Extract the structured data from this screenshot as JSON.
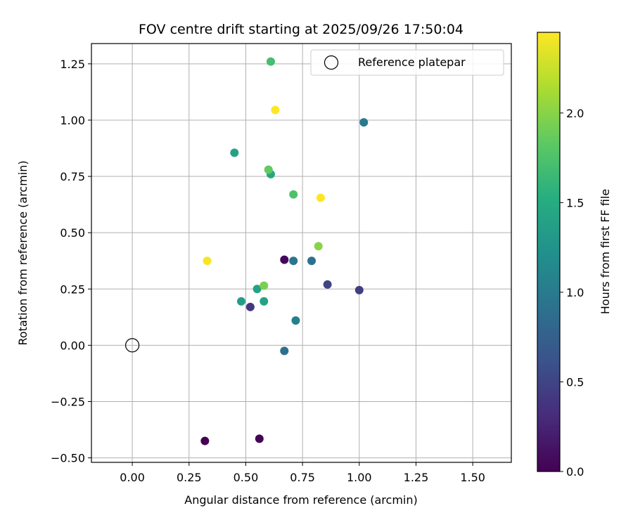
{
  "chart_data": {
    "type": "scatter",
    "title": "FOV centre drift starting at 2025/09/26 17:50:04",
    "xlabel": "Angular distance from reference (arcmin)",
    "ylabel": "Rotation from reference (arcmin)",
    "xlim": [
      -0.18,
      1.67
    ],
    "ylim": [
      -0.52,
      1.34
    ],
    "xticks": [
      "0.00",
      "0.25",
      "0.50",
      "0.75",
      "1.00",
      "1.25",
      "1.50"
    ],
    "xtick_values": [
      0,
      0.25,
      0.5,
      0.75,
      1.0,
      1.25,
      1.5
    ],
    "yticks": [
      "−0.50",
      "−0.25",
      "0.00",
      "0.25",
      "0.50",
      "0.75",
      "1.00",
      "1.25"
    ],
    "ytick_values": [
      -0.5,
      -0.25,
      0,
      0.25,
      0.5,
      0.75,
      1.0,
      1.25
    ],
    "grid": true,
    "legend": {
      "position": "top-right",
      "label": "Reference platepar"
    },
    "reference_point": {
      "x": 0.0,
      "y": 0.0
    },
    "colorbar": {
      "label": "Hours from first FF file",
      "range": [
        0.0,
        2.45
      ],
      "ticks": [
        "0.0",
        "0.5",
        "1.0",
        "1.5",
        "2.0"
      ],
      "tick_values": [
        0.0,
        0.5,
        1.0,
        1.5,
        2.0
      ]
    },
    "points": [
      {
        "x": 0.32,
        "y": -0.425,
        "c": 0.0
      },
      {
        "x": 0.56,
        "y": -0.415,
        "c": 0.02
      },
      {
        "x": 0.67,
        "y": 0.38,
        "c": 0.05
      },
      {
        "x": 0.52,
        "y": 0.17,
        "c": 0.4
      },
      {
        "x": 1.0,
        "y": 0.245,
        "c": 0.45
      },
      {
        "x": 0.86,
        "y": 0.27,
        "c": 0.5
      },
      {
        "x": 0.67,
        "y": -0.025,
        "c": 0.9
      },
      {
        "x": 0.71,
        "y": 0.375,
        "c": 0.95
      },
      {
        "x": 0.79,
        "y": 0.375,
        "c": 0.92
      },
      {
        "x": 1.02,
        "y": 0.99,
        "c": 1.0
      },
      {
        "x": 0.72,
        "y": 0.11,
        "c": 1.05
      },
      {
        "x": 0.48,
        "y": 0.195,
        "c": 1.35
      },
      {
        "x": 0.58,
        "y": 0.195,
        "c": 1.4
      },
      {
        "x": 0.55,
        "y": 0.25,
        "c": 1.4
      },
      {
        "x": 0.45,
        "y": 0.855,
        "c": 1.4
      },
      {
        "x": 0.61,
        "y": 0.76,
        "c": 1.45
      },
      {
        "x": 0.61,
        "y": 1.26,
        "c": 1.7
      },
      {
        "x": 0.71,
        "y": 0.67,
        "c": 1.75
      },
      {
        "x": 0.6,
        "y": 0.78,
        "c": 1.85
      },
      {
        "x": 0.58,
        "y": 0.265,
        "c": 1.95
      },
      {
        "x": 0.82,
        "y": 0.44,
        "c": 2.0
      },
      {
        "x": 0.33,
        "y": 0.375,
        "c": 2.42
      },
      {
        "x": 0.63,
        "y": 1.045,
        "c": 2.45
      },
      {
        "x": 0.83,
        "y": 0.655,
        "c": 2.45
      }
    ]
  }
}
